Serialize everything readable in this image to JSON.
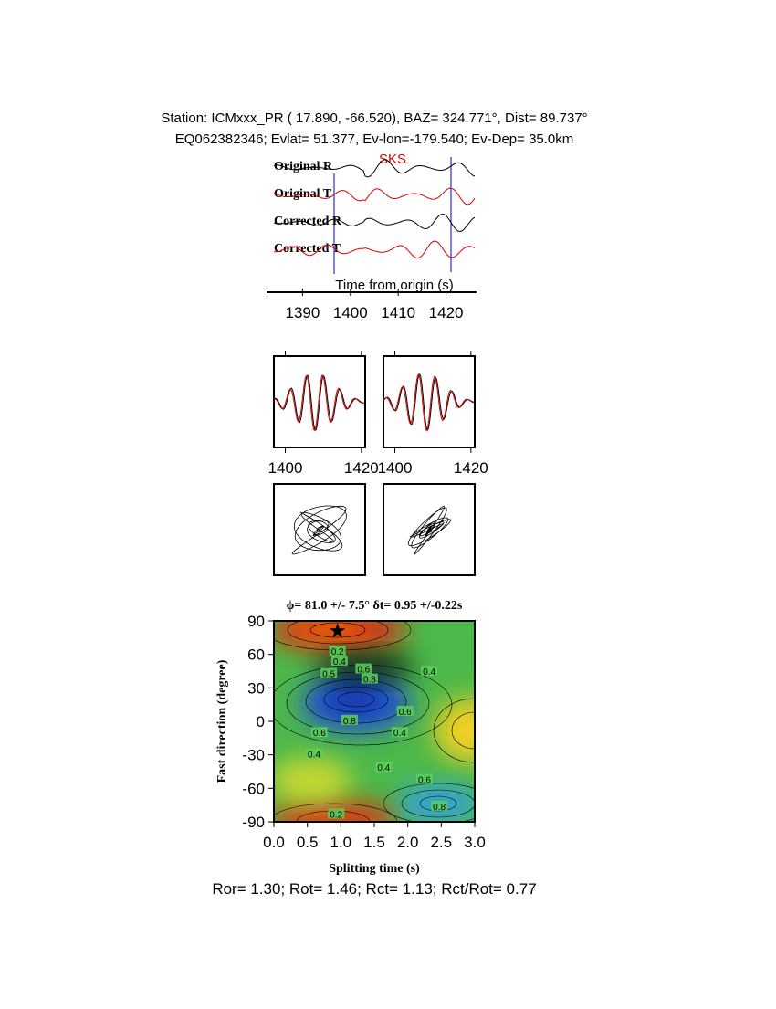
{
  "header": {
    "line1": "Station: ICMxxx_PR (  17.890,  -66.520), BAZ=  324.771°, Dist=   89.737°",
    "line2": "EQ062382346; Evlat=  51.377, Ev-lon=-179.540; Ev-Dep= 35.0km"
  },
  "traces": {
    "labels": [
      "Original R",
      "Original T",
      "Corrected R",
      "Corrected T"
    ],
    "phase": "SKS",
    "xlabel": "Time from origin (s)",
    "xlim": [
      1384,
      1426
    ],
    "xticks": [
      1390,
      1400,
      1410,
      1420
    ]
  },
  "waveform_panels": {
    "xlim": [
      1397,
      1421
    ],
    "xticks": [
      1400,
      1420
    ]
  },
  "grid_search": {
    "title": "ϕ= 81.0 +/- 7.5° δt= 0.95 +/-0.22s",
    "xlabel": "Splitting time (s)",
    "ylabel": "Fast direction (degree)",
    "xlim": [
      0,
      3
    ],
    "ylim": [
      -90,
      90
    ],
    "xticks": [
      {
        "value": 0,
        "label": "0.0"
      },
      {
        "value": 0.5,
        "label": "0.5"
      },
      {
        "value": 1,
        "label": "1.0"
      },
      {
        "value": 1.5,
        "label": "1.5"
      },
      {
        "value": 2,
        "label": "2.0"
      },
      {
        "value": 2.5,
        "label": "2.5"
      },
      {
        "value": 3,
        "label": "3.0"
      }
    ],
    "yticks": [
      90,
      60,
      30,
      0,
      -30,
      -60,
      -90
    ],
    "best": {
      "time": 0.95,
      "phi": 81
    },
    "contour_labels": [
      {
        "x": 0.95,
        "y": 63,
        "label": "0.2"
      },
      {
        "x": 0.98,
        "y": 54,
        "label": "0.4"
      },
      {
        "x": 0.82,
        "y": 43,
        "label": "0.5"
      },
      {
        "x": 1.34,
        "y": 47,
        "label": "0.6"
      },
      {
        "x": 1.43,
        "y": 38,
        "label": "0.8"
      },
      {
        "x": 2.32,
        "y": 45,
        "label": "0.4"
      },
      {
        "x": 1.13,
        "y": 1,
        "label": "0.8"
      },
      {
        "x": 1.96,
        "y": 9,
        "label": "0.6"
      },
      {
        "x": 1.88,
        "y": -10,
        "label": "0.4"
      },
      {
        "x": 0.68,
        "y": -10,
        "label": "0.6"
      },
      {
        "x": 0.6,
        "y": -29,
        "label": "0.4"
      },
      {
        "x": 1.64,
        "y": -41,
        "label": "0.4"
      },
      {
        "x": 2.25,
        "y": -52,
        "label": "0.6"
      },
      {
        "x": 2.47,
        "y": -76,
        "label": "0.8"
      },
      {
        "x": 0.93,
        "y": -83,
        "label": "0.2"
      }
    ]
  },
  "footer": "Ror= 1.30; Rot= 1.46; Rct= 1.13; Rct/Rot= 0.77"
}
